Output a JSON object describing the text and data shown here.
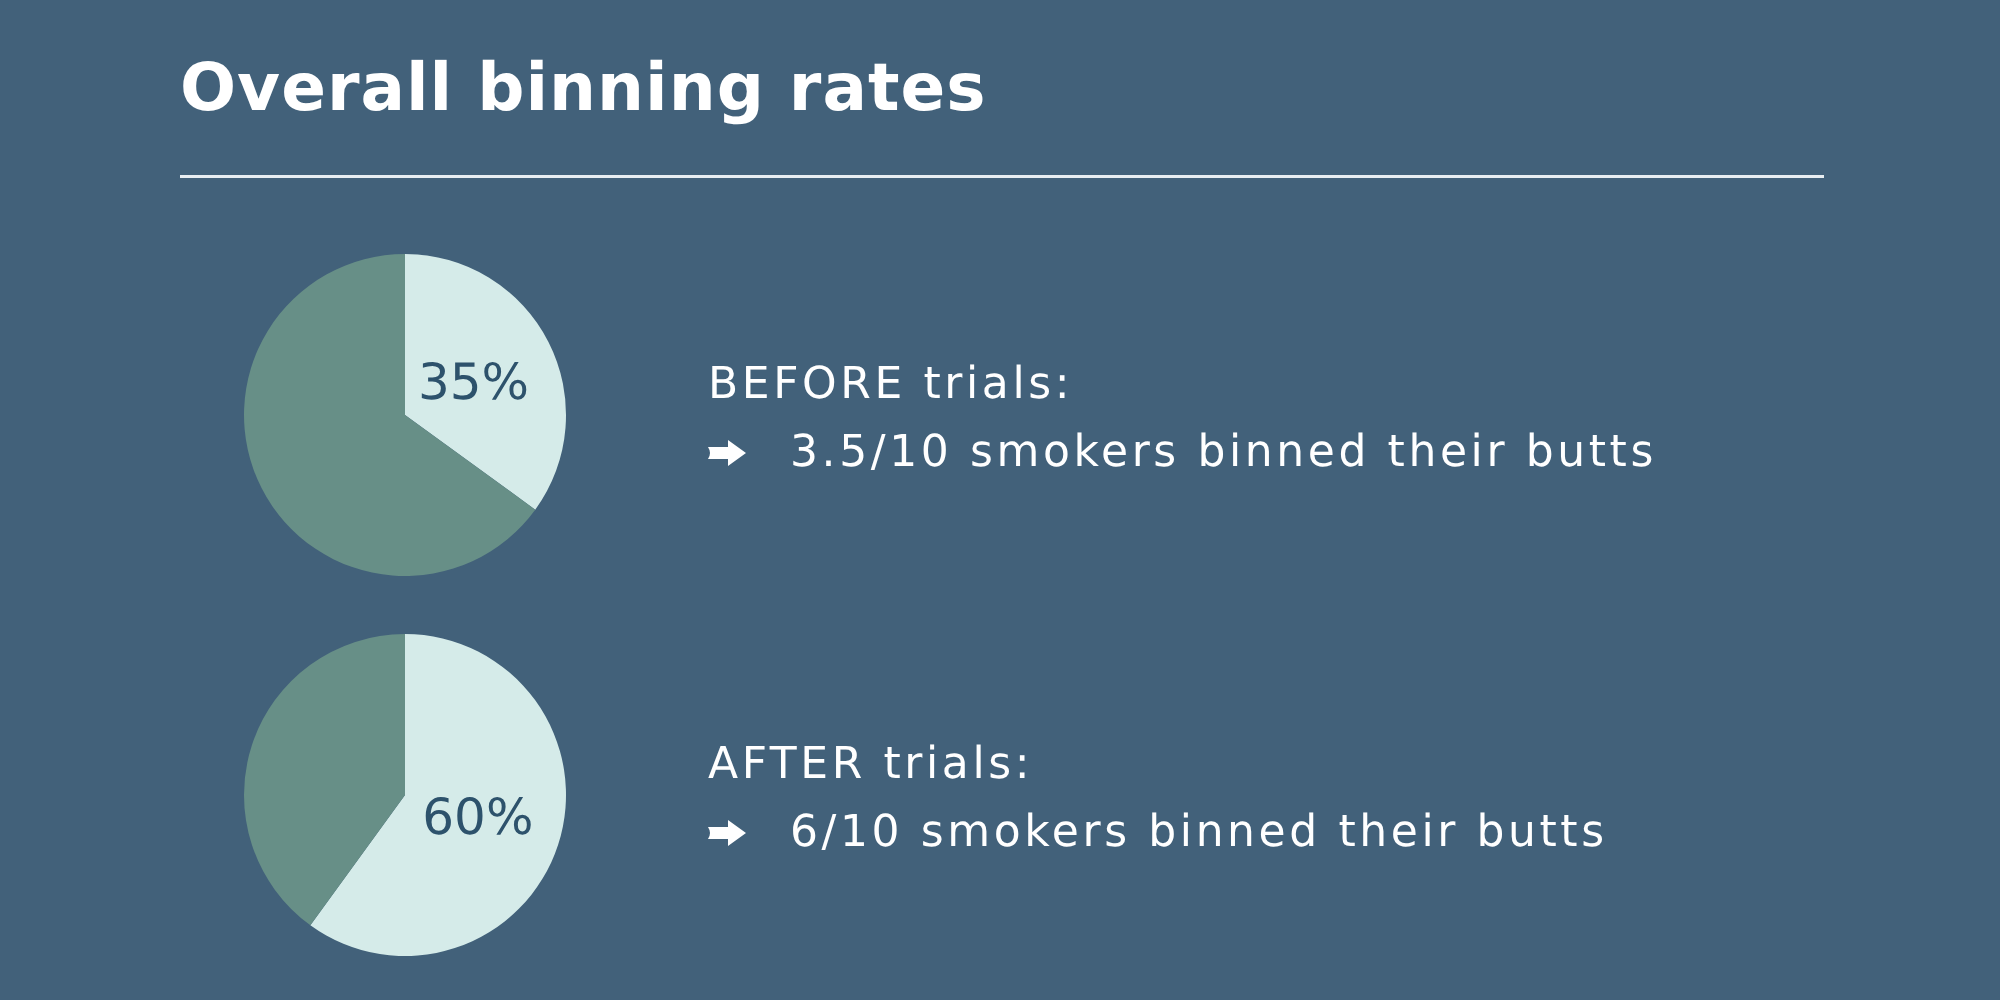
{
  "chart_data": [
    {
      "type": "pie",
      "title": "Overall binning rates",
      "categories": [
        null,
        null
      ],
      "values": [
        35,
        65
      ],
      "colors": [
        "#d5ebe9",
        "#678f87"
      ],
      "value_labels": [
        "35%",
        null
      ],
      "annotations": [
        "BEFORE trials:",
        "3.5/10 smokers binned their butts"
      ]
    },
    {
      "type": "pie",
      "categories": [
        null,
        null
      ],
      "values": [
        60,
        40
      ],
      "colors": [
        "#d5ebe9",
        "#678f87"
      ],
      "value_labels": [
        "60%",
        null
      ],
      "annotations": [
        "AFTER trials:",
        "6/10 smokers binned their butts"
      ]
    }
  ]
}
